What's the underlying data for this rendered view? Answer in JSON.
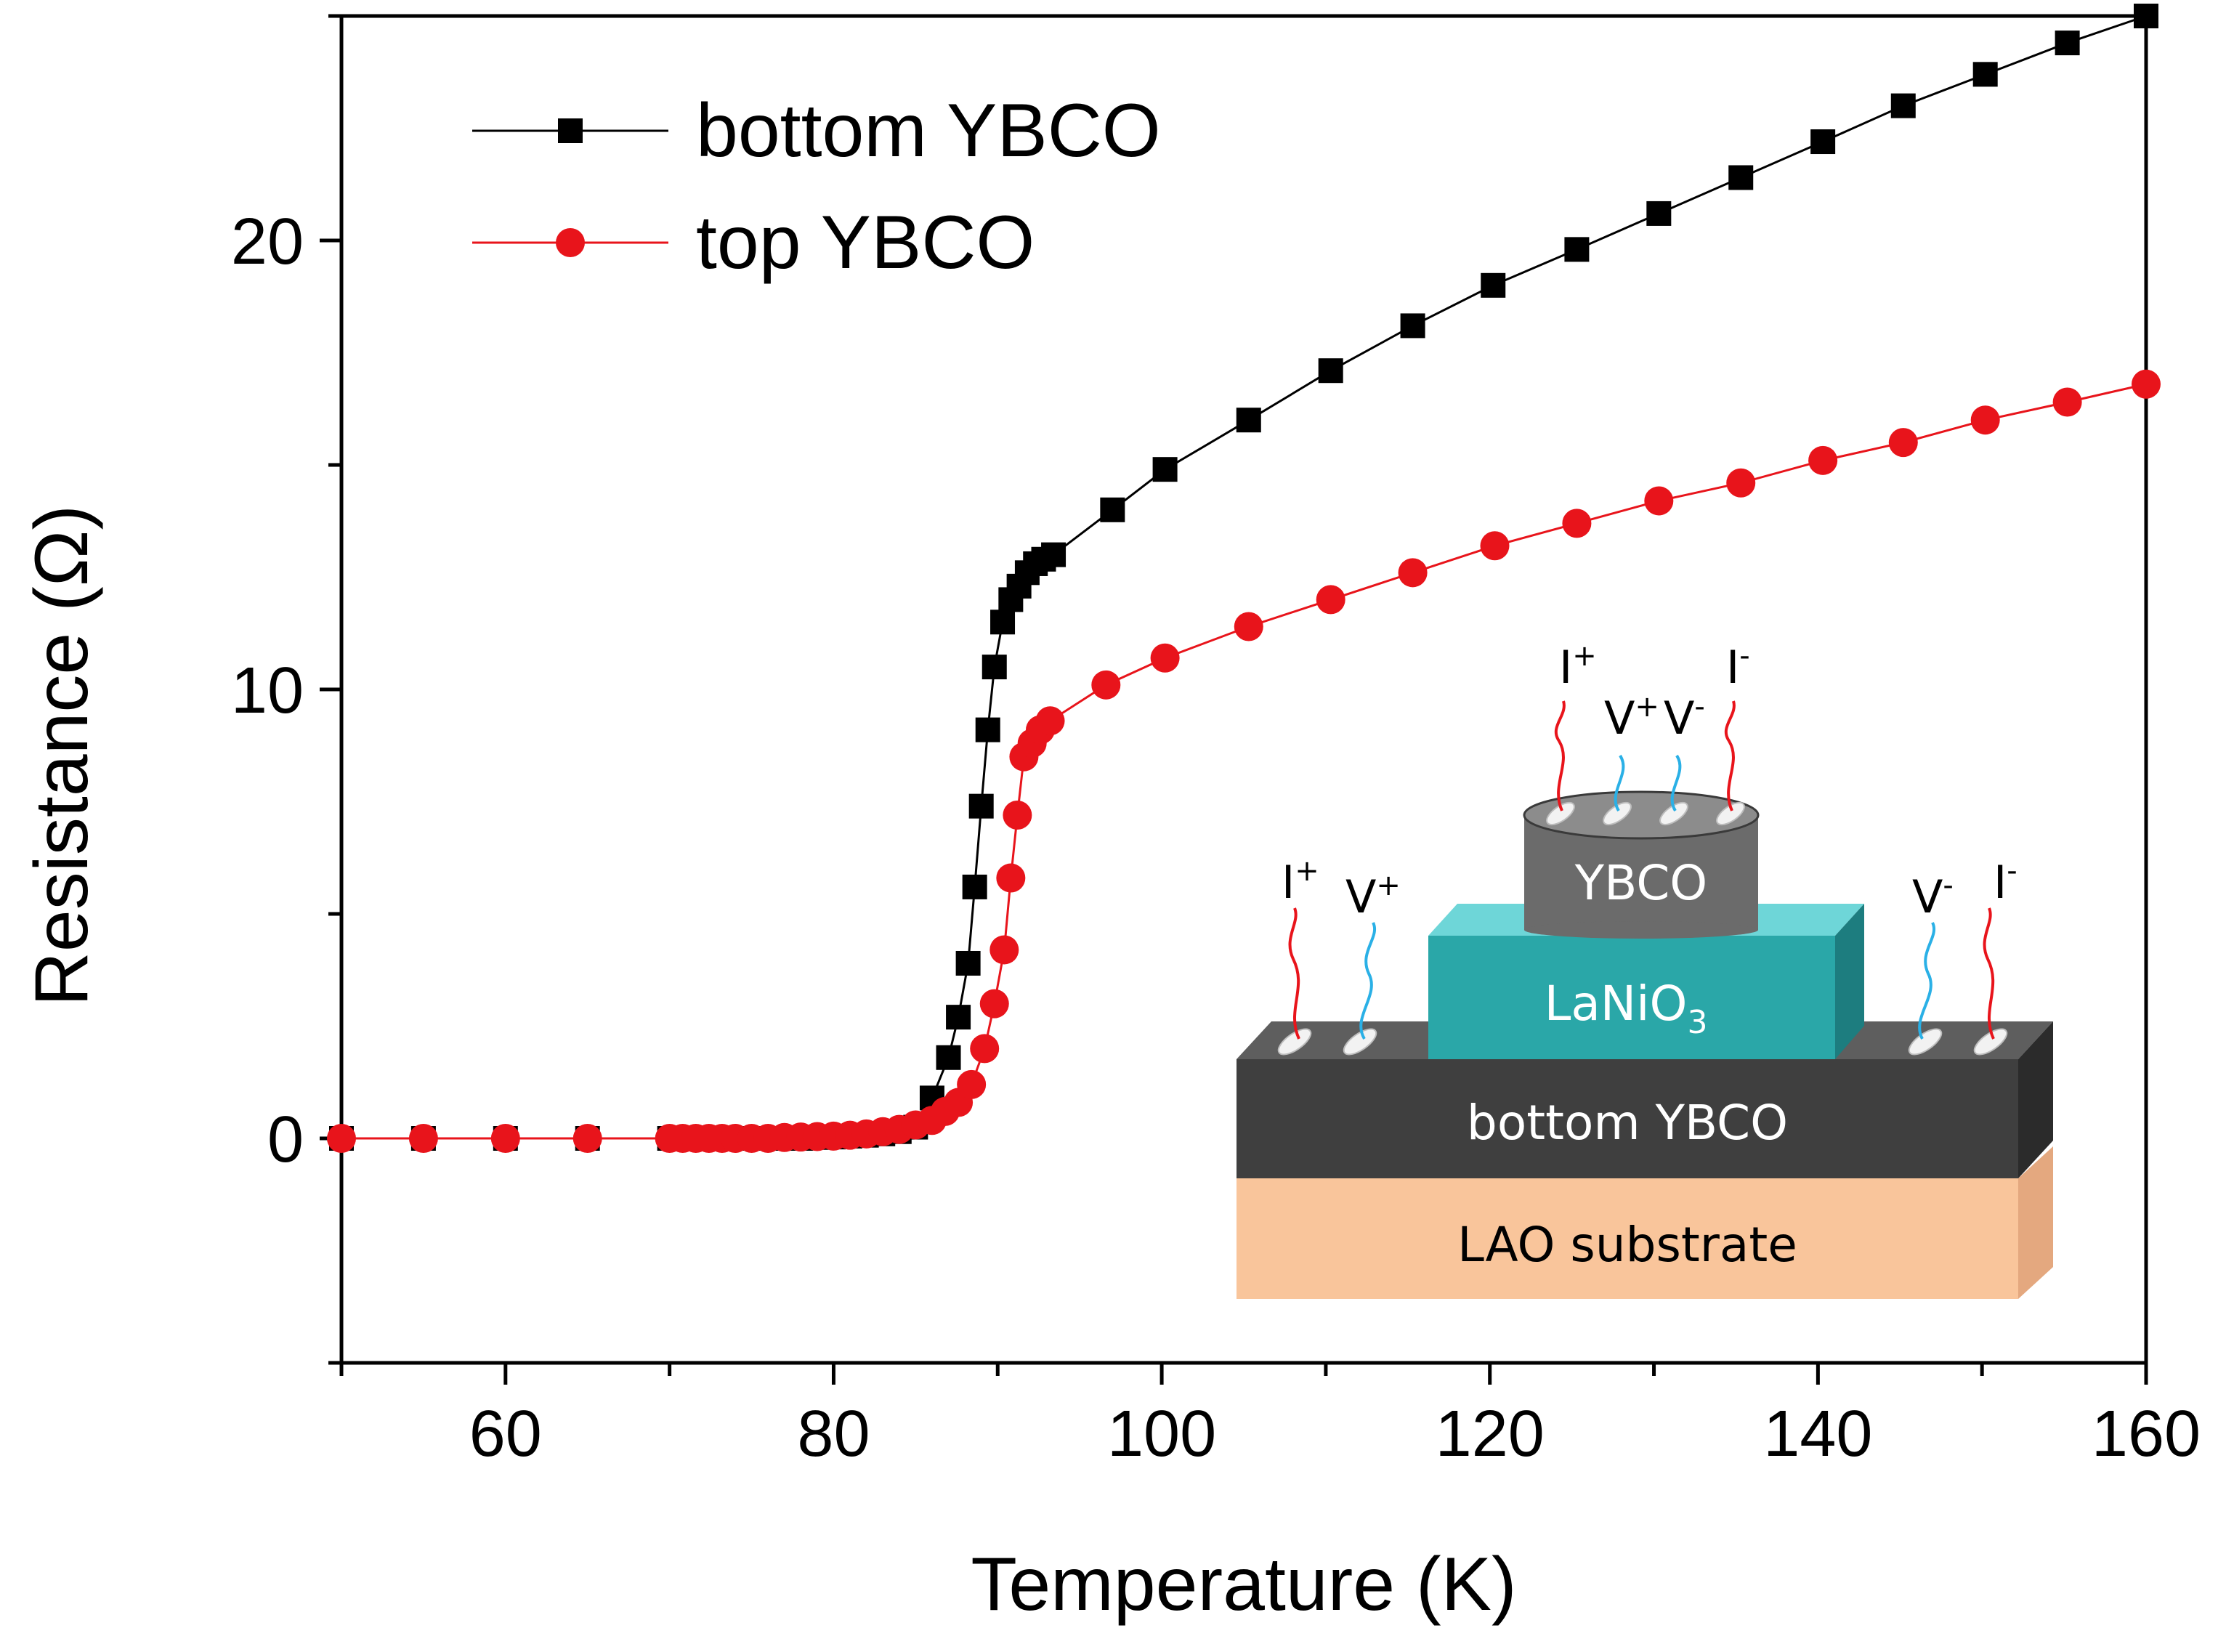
{
  "chart_data": {
    "type": "line",
    "title": "",
    "xlabel": "Temperature (K)",
    "ylabel": "Resistance (Ω)",
    "xlim": [
      50,
      160
    ],
    "ylim": [
      -5,
      25
    ],
    "xticks": [
      60,
      80,
      100,
      120,
      140,
      160
    ],
    "yticks": [
      0,
      10,
      20
    ],
    "xtick_labels": [
      "60",
      "80",
      "100",
      "120",
      "140",
      "160"
    ],
    "ytick_labels": [
      "0",
      "10",
      "20"
    ],
    "legend_position": "top-left",
    "series": [
      {
        "name": "bottom YBCO",
        "color": "#000000",
        "marker": "square",
        "x": [
          50,
          55,
          60,
          65,
          70,
          71,
          72,
          73,
          74,
          75,
          76,
          77,
          78,
          79,
          80,
          81,
          82,
          83,
          84,
          85,
          86,
          87,
          87.6,
          88.2,
          88.6,
          89,
          89.4,
          89.8,
          90.3,
          90.8,
          91.3,
          91.8,
          92.3,
          92.8,
          93.4,
          97,
          100.2,
          105.3,
          110.3,
          115.3,
          120.2,
          125.3,
          130.3,
          135.3,
          140.3,
          145.2,
          150.2,
          155.2,
          160
        ],
        "y": [
          0,
          0,
          0,
          0,
          0,
          0,
          0,
          0,
          0,
          0,
          0,
          0,
          0,
          0.02,
          0.03,
          0.05,
          0.07,
          0.1,
          0.15,
          0.25,
          0.9,
          1.8,
          2.7,
          3.9,
          5.6,
          7.4,
          9.1,
          10.5,
          11.5,
          12.0,
          12.3,
          12.6,
          12.8,
          12.9,
          13.0,
          14.0,
          14.9,
          16.0,
          17.1,
          18.1,
          19.0,
          19.8,
          20.6,
          21.4,
          22.2,
          23.0,
          23.7,
          24.4,
          25.0
        ]
      },
      {
        "name": "top YBCO",
        "color": "#e8141b",
        "marker": "circle",
        "x": [
          50,
          55,
          60,
          65,
          70,
          70.8,
          71.6,
          72.4,
          73.2,
          74,
          75,
          76,
          77,
          78,
          79,
          80,
          81,
          82,
          83,
          84,
          85,
          86,
          86.8,
          87.6,
          88.4,
          89.2,
          89.8,
          90.4,
          90.8,
          91.2,
          91.6,
          92.1,
          92.6,
          93.2,
          96.6,
          100.2,
          105.3,
          110.3,
          115.3,
          120.3,
          125.3,
          130.3,
          135.3,
          140.3,
          145.2,
          150.2,
          155.2,
          160
        ],
        "y": [
          0,
          0,
          0,
          0,
          0,
          0,
          0,
          0,
          0,
          0,
          0,
          0,
          0.02,
          0.03,
          0.04,
          0.05,
          0.07,
          0.1,
          0.15,
          0.2,
          0.3,
          0.4,
          0.6,
          0.8,
          1.2,
          2.0,
          3.0,
          4.2,
          5.8,
          7.2,
          8.5,
          8.8,
          9.1,
          9.3,
          10.1,
          10.7,
          11.4,
          12.0,
          12.6,
          13.2,
          13.7,
          14.2,
          14.6,
          15.1,
          15.5,
          16.0,
          16.4,
          16.8
        ]
      }
    ]
  },
  "inset": {
    "top_ybco": "YBCO",
    "lanio3_base": "LaNiO",
    "lanio3_sub": "3",
    "bottom_ybco": "bottom YBCO",
    "substrate": "LAO substrate",
    "contacts": {
      "i_plus": "I",
      "v_plus": "V",
      "v_minus": "V",
      "i_minus": "I",
      "plus": "+",
      "minus": "-"
    },
    "colors": {
      "substrate_front": "#f9c59b",
      "substrate_side": "#e4a87f",
      "bottom_front": "#3f3f3f",
      "bottom_top": "#5e5e5e",
      "bottom_side": "#2b2b2b",
      "lanio3_front": "#2aa7a8",
      "lanio3_top": "#6ed6d8",
      "lanio3_side": "#1d7d7f",
      "top_ybco_body": "#6b6b6b",
      "top_ybco_cap": "#8c8c8c",
      "wire_current": "#e8141b",
      "wire_voltage": "#2ab0e6"
    }
  }
}
